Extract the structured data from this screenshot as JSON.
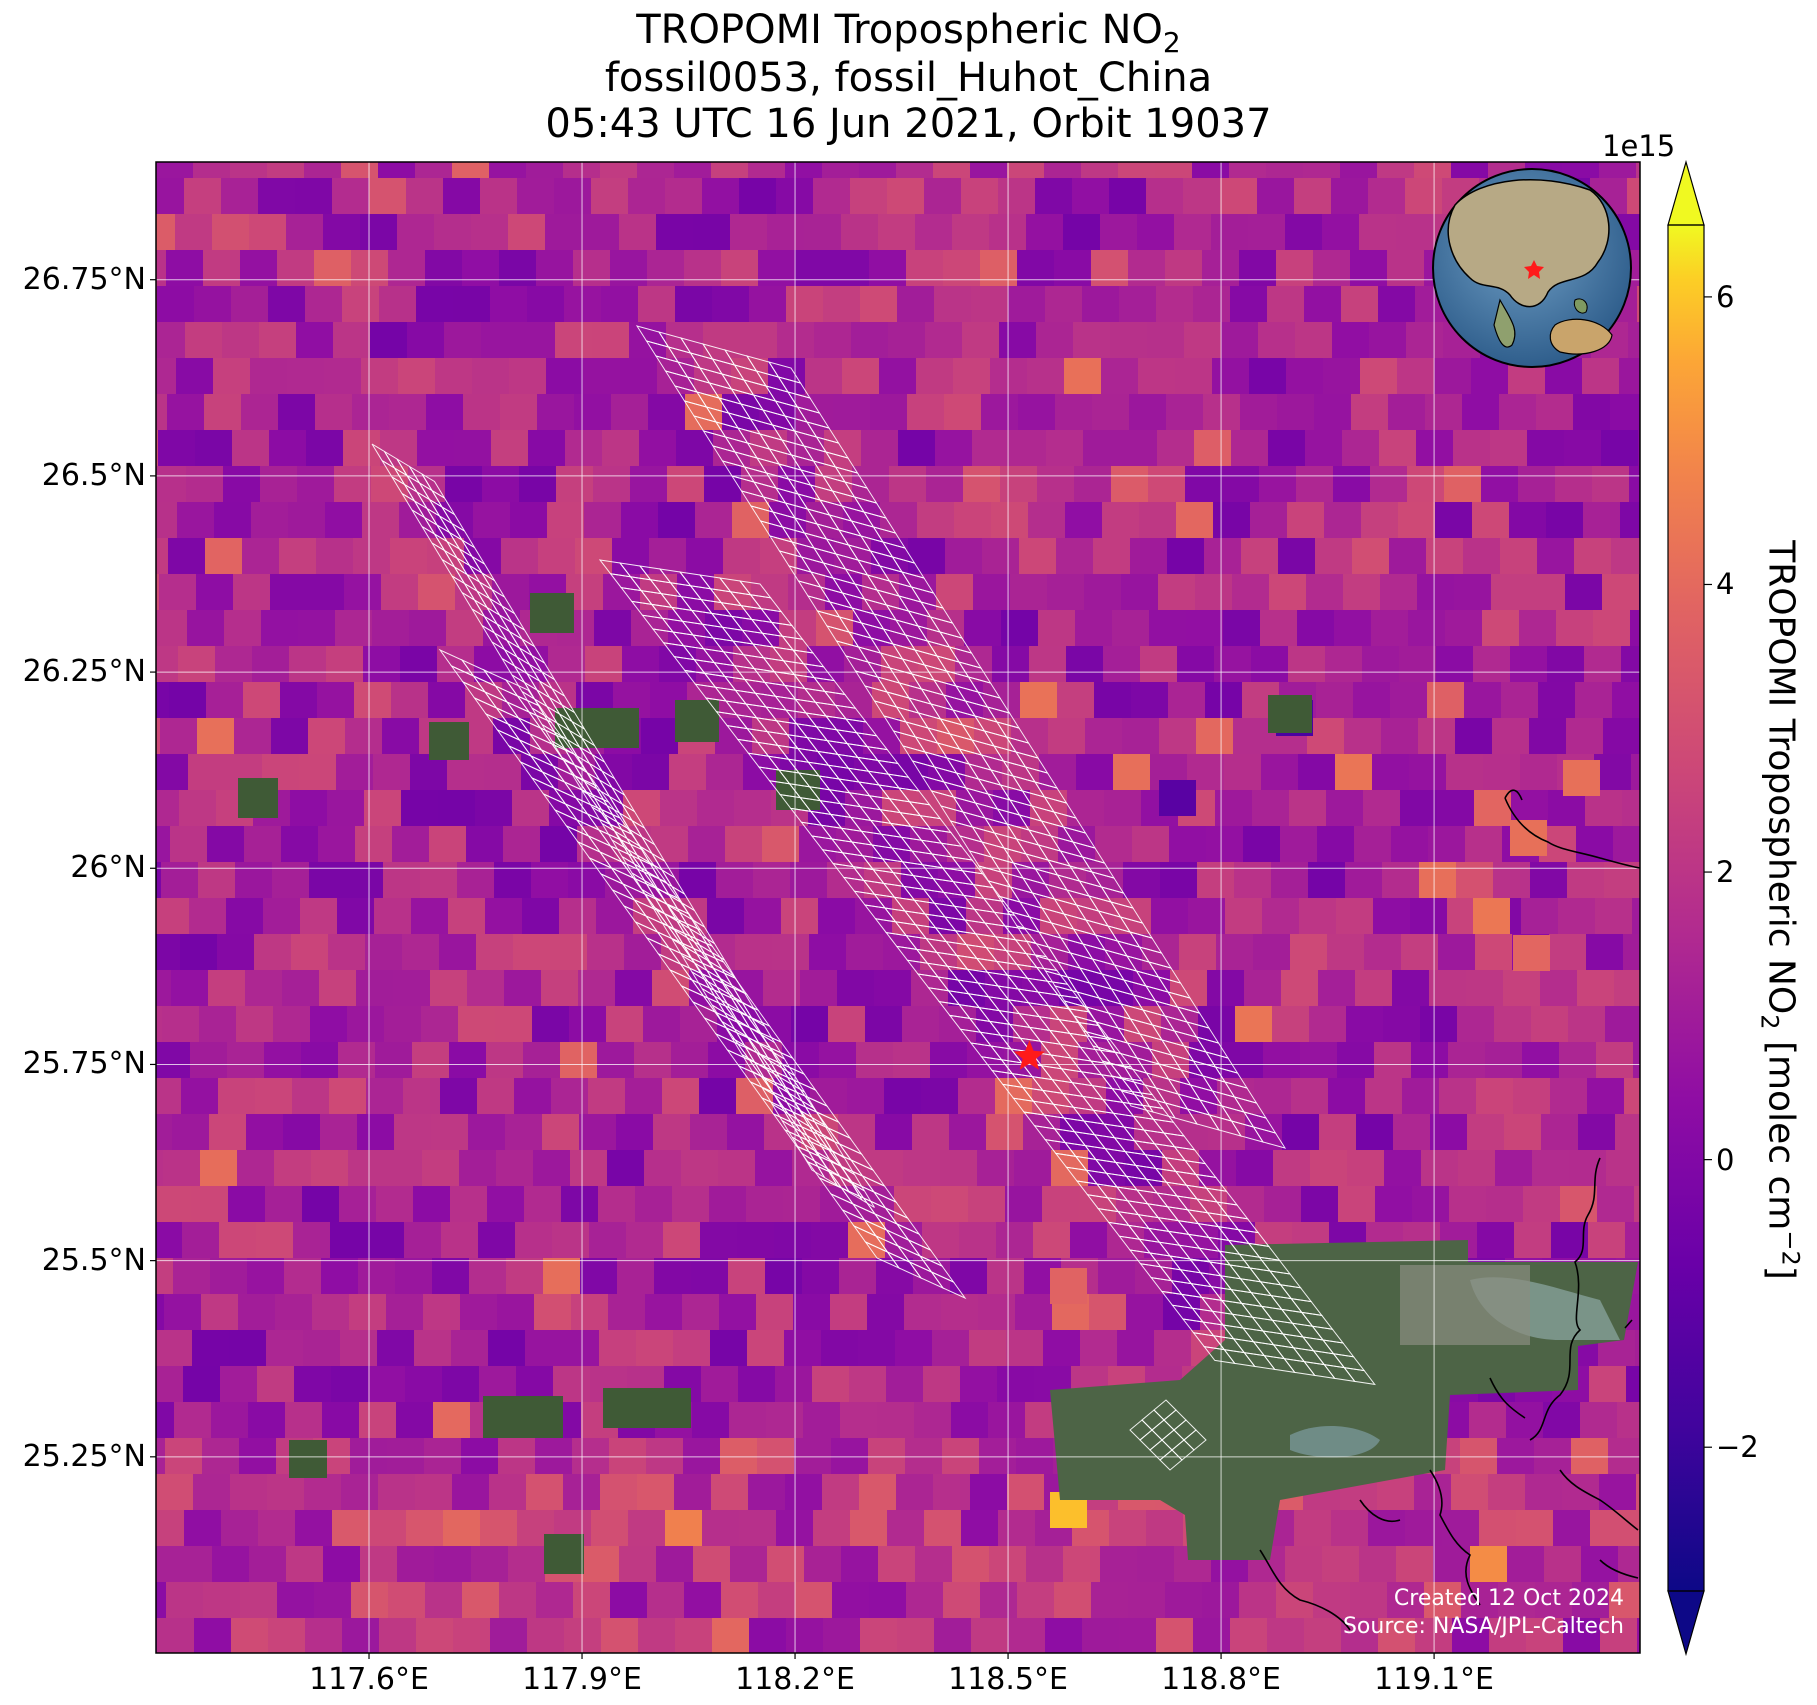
{
  "title": {
    "line1": "TROPOMI Tropospheric NO",
    "line1_sub": "2",
    "line2": "fossil0053, fossil_Huhot_China",
    "line3": "05:43 UTC 16 Jun 2021, Orbit 19037"
  },
  "map": {
    "lon_range": [
      117.3,
      119.39
    ],
    "lat_range": [
      25.0,
      26.9
    ],
    "lon_ticks": [
      "117.6°E",
      "117.9°E",
      "118.2°E",
      "118.5°E",
      "118.8°E",
      "119.1°E"
    ],
    "lon_tick_values": [
      117.6,
      117.9,
      118.2,
      118.5,
      118.8,
      119.1
    ],
    "lat_ticks": [
      "26.75°N",
      "26.5°N",
      "26.25°N",
      "26°N",
      "25.75°N",
      "25.5°N",
      "25.25°N"
    ],
    "lat_tick_values": [
      26.75,
      26.5,
      26.25,
      26.0,
      25.75,
      25.5,
      25.25
    ],
    "target_marker": {
      "lon": 118.53,
      "lat": 25.76,
      "symbol": "red-star"
    },
    "inset_globe": {
      "center_region": "East Asia",
      "marker": "red-star"
    },
    "credit_line1": "Created 12 Oct 2024",
    "credit_line2": "Source: NASA/JPL-Caltech"
  },
  "colorbar": {
    "colormap": "plasma",
    "range": [
      -3,
      6.5
    ],
    "ticks": [
      "6",
      "4",
      "2",
      "0",
      "−2"
    ],
    "tick_values": [
      6,
      4,
      2,
      0,
      -2
    ],
    "scale_label": "1e15",
    "label_pre": "TROPOMI Tropospheric NO",
    "label_sub": "2",
    "label_mid": " [molec cm",
    "label_sup": "−2",
    "label_post": "]",
    "extend": "both"
  }
}
